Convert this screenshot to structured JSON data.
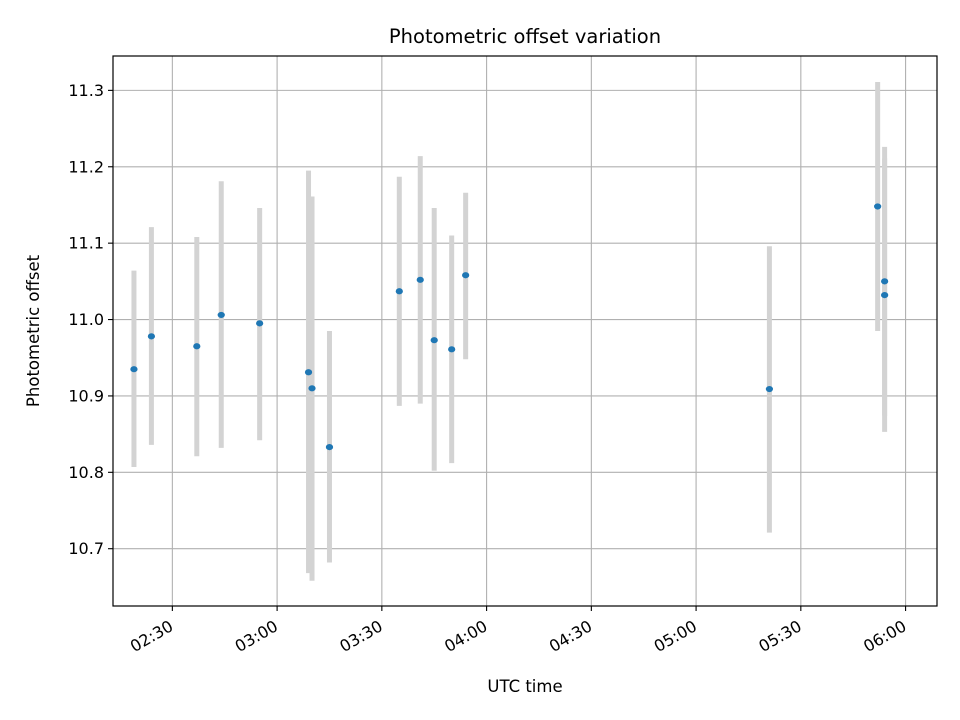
{
  "chart_data": {
    "type": "scatter",
    "title": "Photometric offset variation",
    "xlabel": "UTC time",
    "ylabel": "Photometric offset",
    "x_unit": "UTC time (HH:MM)",
    "xlim": [
      "02:13",
      "06:09"
    ],
    "ylim": [
      10.625,
      11.345
    ],
    "grid": true,
    "x_ticks": [
      "02:30",
      "03:00",
      "03:30",
      "04:00",
      "04:30",
      "05:00",
      "05:30",
      "06:00"
    ],
    "y_ticks": [
      "10.7",
      "10.8",
      "10.9",
      "11.0",
      "11.1",
      "11.2",
      "11.3"
    ],
    "colors": {
      "points": "#1f77b4",
      "errorbars": "#d3d3d3",
      "grid": "#b0b0b0"
    },
    "series": [
      {
        "points": [
          {
            "x": "02:19",
            "y": 10.935,
            "ylow": 10.807,
            "yhigh": 11.064
          },
          {
            "x": "02:24",
            "y": 10.978,
            "ylow": 10.836,
            "yhigh": 11.121
          },
          {
            "x": "02:37",
            "y": 10.965,
            "ylow": 10.821,
            "yhigh": 11.108
          },
          {
            "x": "02:44",
            "y": 11.006,
            "ylow": 10.832,
            "yhigh": 11.181
          },
          {
            "x": "02:55",
            "y": 10.995,
            "ylow": 10.842,
            "yhigh": 11.146
          },
          {
            "x": "03:09",
            "y": 10.931,
            "ylow": 10.668,
            "yhigh": 11.195
          },
          {
            "x": "03:10",
            "y": 10.91,
            "ylow": 10.658,
            "yhigh": 11.161
          },
          {
            "x": "03:15",
            "y": 10.833,
            "ylow": 10.682,
            "yhigh": 10.985
          },
          {
            "x": "03:35",
            "y": 11.037,
            "ylow": 10.887,
            "yhigh": 11.187
          },
          {
            "x": "03:41",
            "y": 11.052,
            "ylow": 10.89,
            "yhigh": 11.214
          },
          {
            "x": "03:45",
            "y": 10.973,
            "ylow": 10.802,
            "yhigh": 11.146
          },
          {
            "x": "03:50",
            "y": 10.961,
            "ylow": 10.812,
            "yhigh": 11.11
          },
          {
            "x": "03:54",
            "y": 11.058,
            "ylow": 10.948,
            "yhigh": 11.166
          },
          {
            "x": "05:21",
            "y": 10.909,
            "ylow": 10.721,
            "yhigh": 11.096
          },
          {
            "x": "05:52",
            "y": 11.148,
            "ylow": 10.985,
            "yhigh": 11.311
          },
          {
            "x": "05:54",
            "y": 11.05,
            "ylow": 10.874,
            "yhigh": 11.226
          },
          {
            "x": "05:54",
            "y": 11.032,
            "ylow": 10.853,
            "yhigh": 11.211
          }
        ]
      }
    ]
  }
}
